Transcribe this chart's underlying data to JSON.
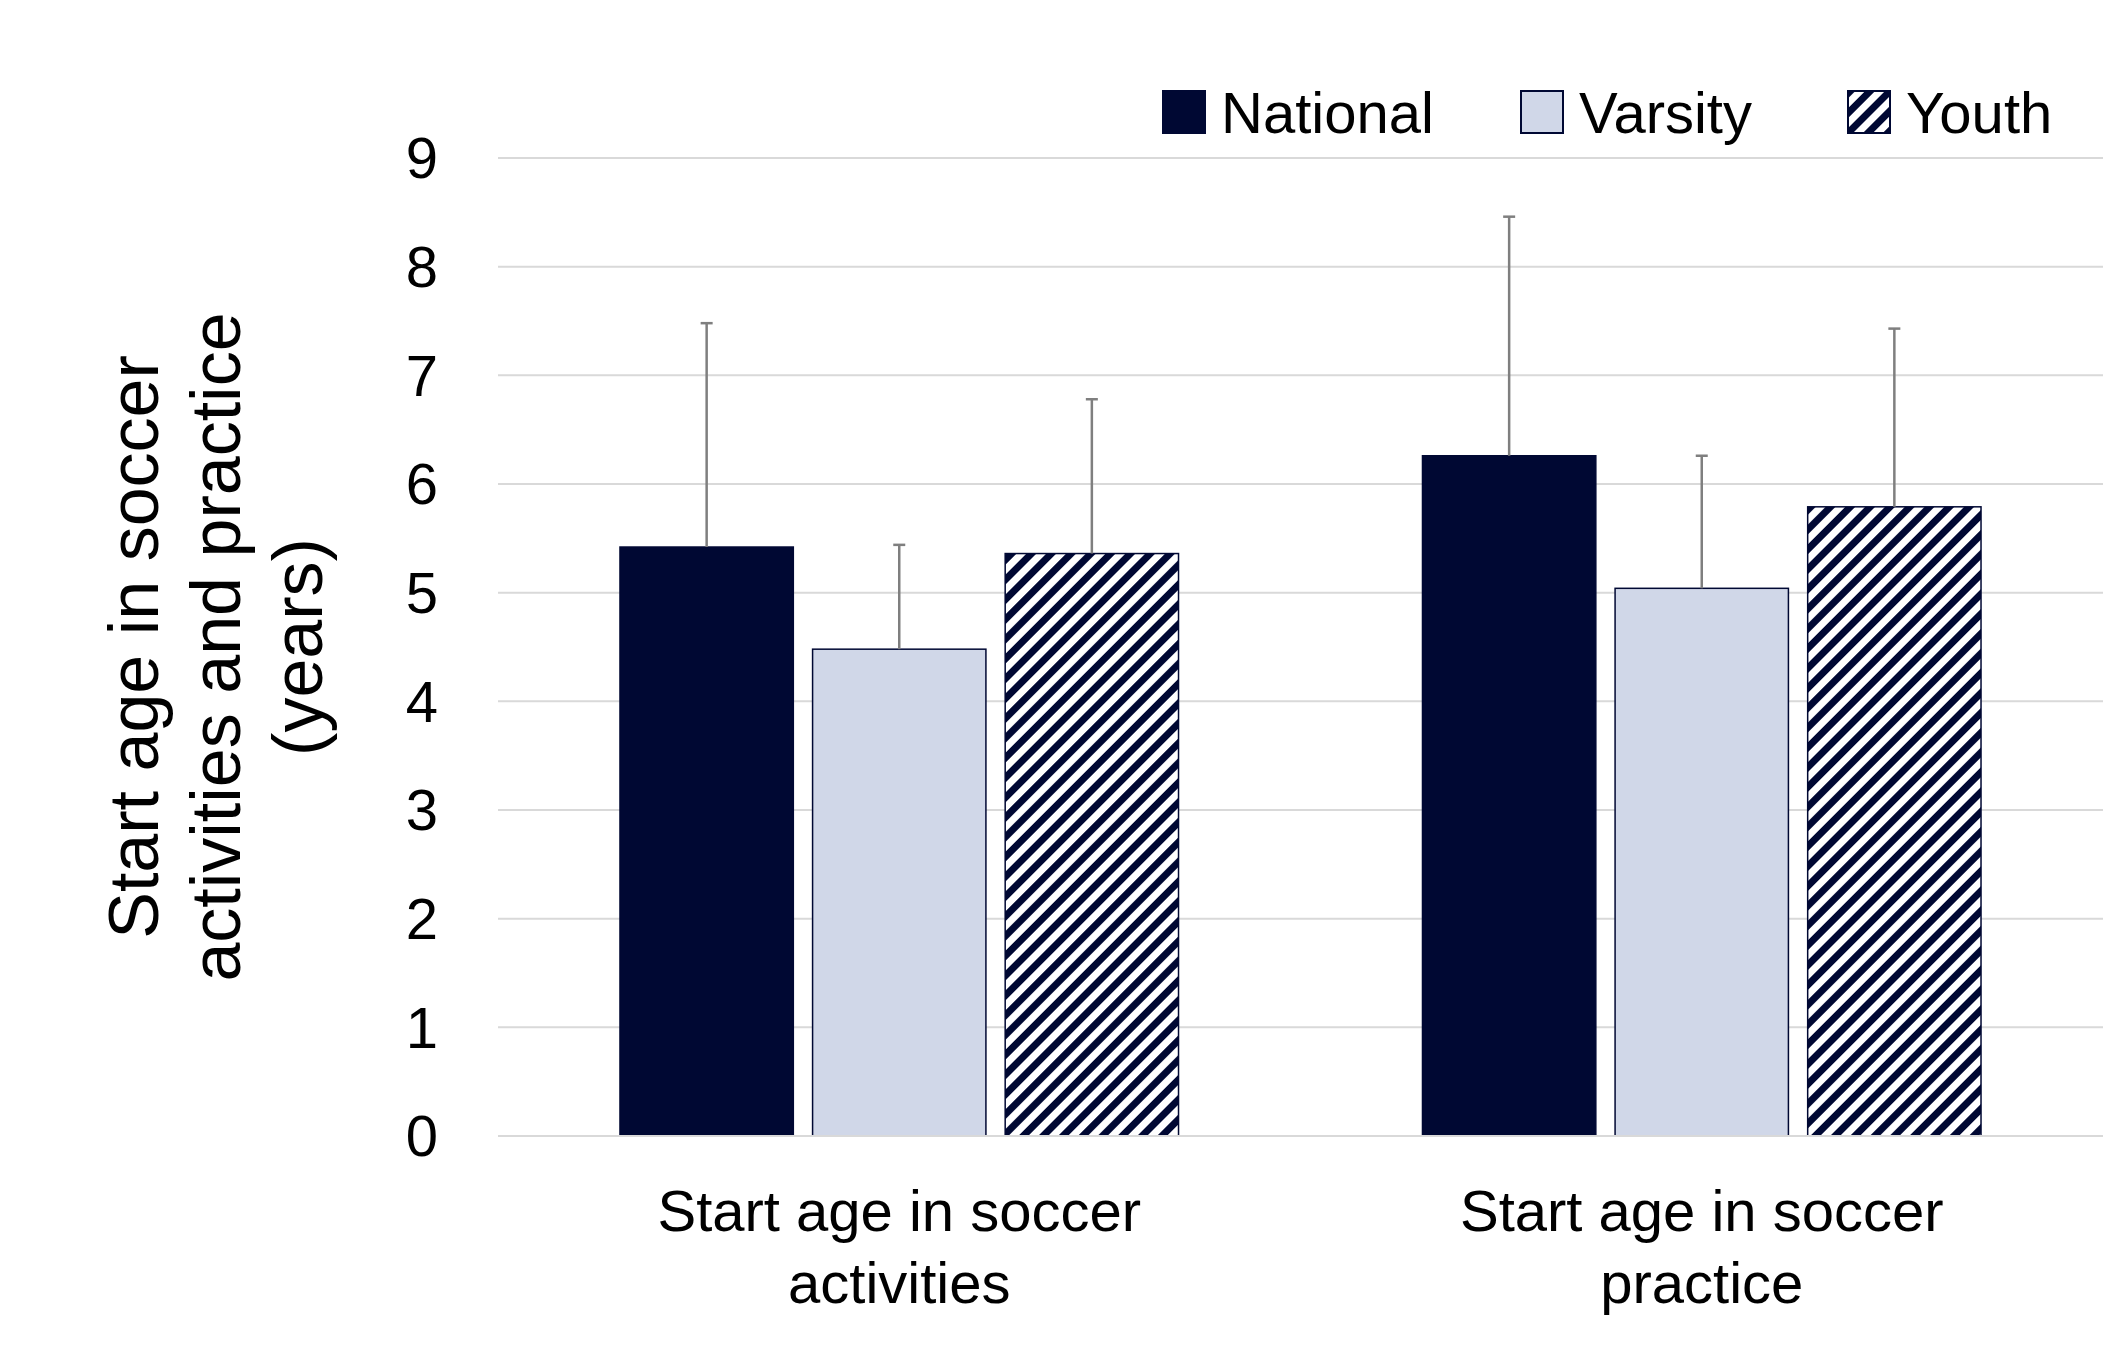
{
  "chart_data": {
    "type": "bar",
    "ylabel": "Start age in soccer activities and practice (years)",
    "categories": [
      "Start age in soccer activities",
      "Start age in soccer practice"
    ],
    "series": [
      {
        "name": "National",
        "color": "#000833",
        "values": [
          5.42,
          6.26
        ],
        "errors": [
          [
            5.42,
            7.48
          ],
          [
            6.26,
            8.46
          ]
        ]
      },
      {
        "name": "Varsity",
        "color": "#d0d7e8",
        "values": [
          4.48,
          5.04
        ],
        "errors": [
          [
            4.48,
            5.44
          ],
          [
            5.04,
            6.26
          ]
        ]
      },
      {
        "name": "Youth",
        "color": "#000833",
        "values": [
          5.36,
          5.79
        ],
        "errors": [
          [
            5.36,
            6.78
          ],
          [
            5.79,
            7.43
          ]
        ]
      }
    ],
    "ylim": [
      0,
      9
    ],
    "yticks": [
      0,
      1,
      2,
      3,
      4,
      5,
      6,
      7,
      8,
      9
    ],
    "grid": "y",
    "legend": "top right"
  }
}
